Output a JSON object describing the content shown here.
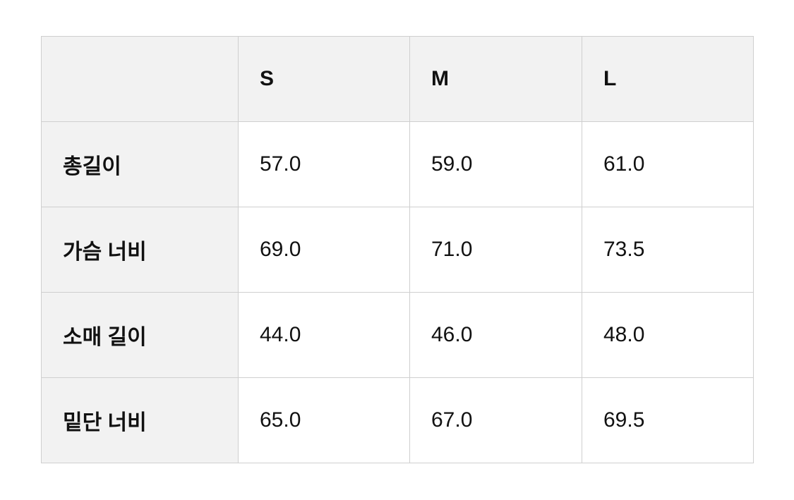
{
  "table": {
    "headers": [
      "",
      "S",
      "M",
      "L"
    ],
    "rows": [
      {
        "label": "총길이",
        "values": [
          "57.0",
          "59.0",
          "61.0"
        ]
      },
      {
        "label": "가슴 너비",
        "values": [
          "69.0",
          "71.0",
          "73.5"
        ]
      },
      {
        "label": "소매 길이",
        "values": [
          "44.0",
          "46.0",
          "48.0"
        ]
      },
      {
        "label": "밑단 너비",
        "values": [
          "65.0",
          "67.0",
          "69.5"
        ]
      }
    ]
  },
  "colors": {
    "header_bg": "#f2f2f2",
    "border": "#cfcfcf"
  }
}
